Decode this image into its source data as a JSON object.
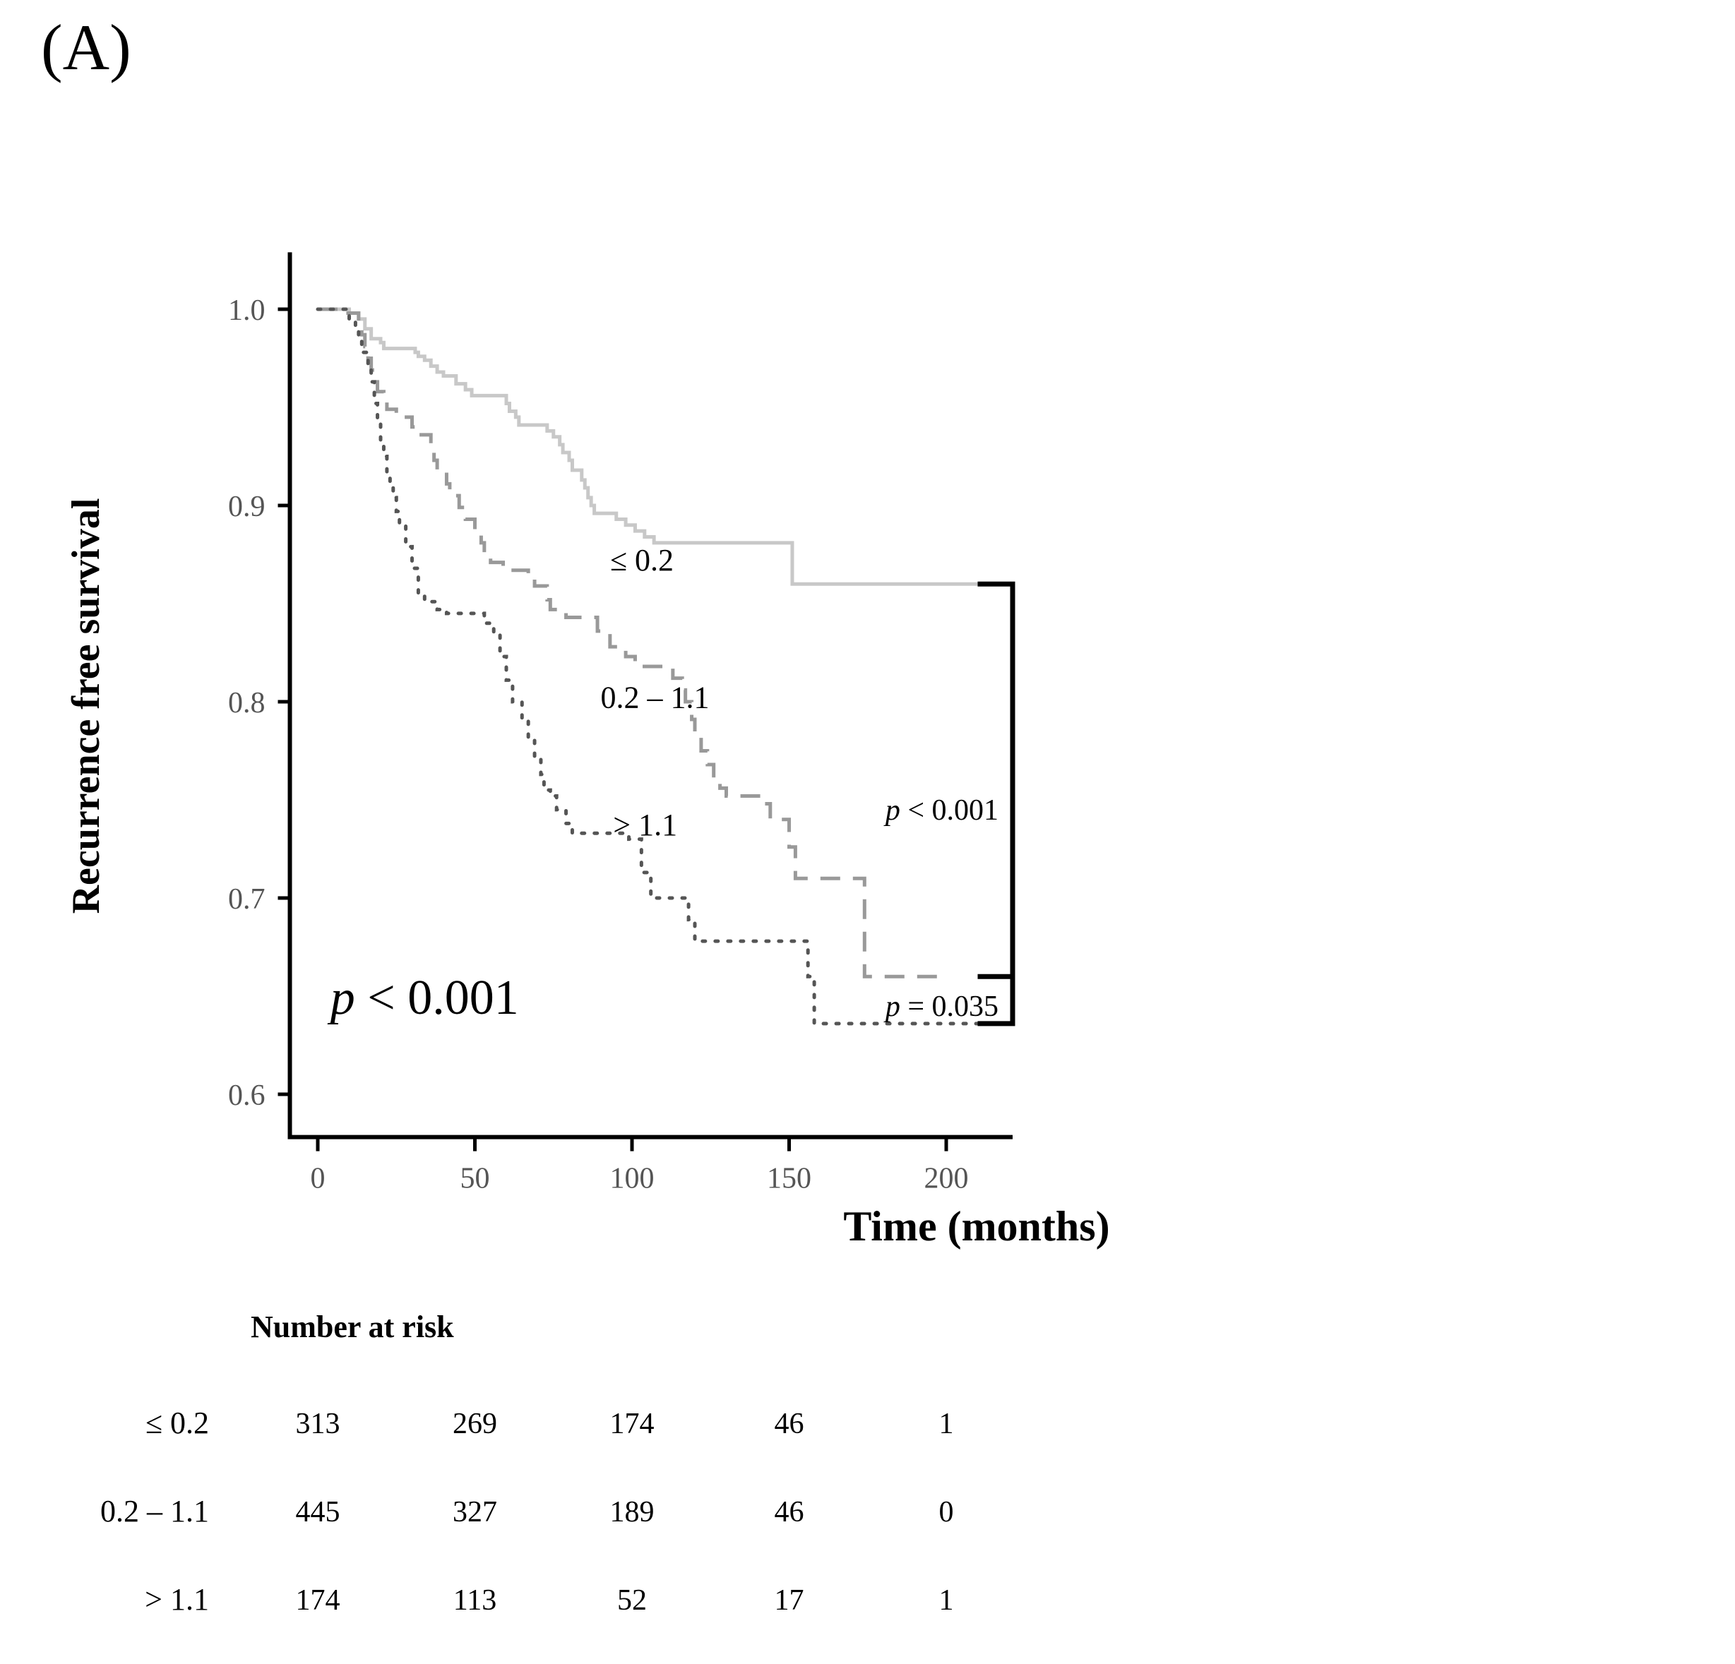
{
  "panel_label": "(A)",
  "chart_data": {
    "type": "line",
    "title": "",
    "xlabel": "Time (months)",
    "ylabel": "Recurrence free survival",
    "xlim": [
      -10,
      220
    ],
    "ylim": [
      0.58,
      1.02
    ],
    "x_ticks": [
      0,
      50,
      100,
      150,
      200
    ],
    "x_tick_labels": [
      "0",
      "50",
      "100",
      "150",
      "200"
    ],
    "y_ticks": [
      0.6,
      0.7,
      0.8,
      0.9,
      1.0
    ],
    "y_tick_labels": [
      "0.6",
      "0.7",
      "0.8",
      "0.9",
      "1.0"
    ],
    "grid": false,
    "series": [
      {
        "name": "≤ 0.2",
        "label": "≤ 0.2",
        "style": "solid",
        "color": "#c8c8c8",
        "label_at": [
          93,
          0.872
        ],
        "steps": [
          [
            0,
            1.0
          ],
          [
            10,
            0.998
          ],
          [
            13,
            0.995
          ],
          [
            15,
            0.99
          ],
          [
            17,
            0.985
          ],
          [
            20,
            0.983
          ],
          [
            21,
            0.98
          ],
          [
            31,
            0.978
          ],
          [
            32,
            0.976
          ],
          [
            34,
            0.974
          ],
          [
            36,
            0.971
          ],
          [
            38,
            0.968
          ],
          [
            40,
            0.966
          ],
          [
            44,
            0.962
          ],
          [
            47,
            0.959
          ],
          [
            49,
            0.956
          ],
          [
            60,
            0.952
          ],
          [
            61,
            0.948
          ],
          [
            63,
            0.945
          ],
          [
            64,
            0.941
          ],
          [
            73,
            0.938
          ],
          [
            75,
            0.935
          ],
          [
            77,
            0.931
          ],
          [
            78,
            0.927
          ],
          [
            80,
            0.923
          ],
          [
            81,
            0.918
          ],
          [
            84,
            0.913
          ],
          [
            85,
            0.909
          ],
          [
            86,
            0.904
          ],
          [
            87,
            0.9
          ],
          [
            88,
            0.896
          ],
          [
            95,
            0.893
          ],
          [
            98,
            0.89
          ],
          [
            101,
            0.887
          ],
          [
            104,
            0.884
          ],
          [
            107,
            0.881
          ],
          [
            151,
            0.86
          ],
          [
            210,
            0.86
          ]
        ]
      },
      {
        "name": "0.2 – 1.1",
        "label": "0.2 – 1.1",
        "style": "dashed",
        "color": "#999999",
        "label_at": [
          90,
          0.802
        ],
        "steps": [
          [
            0,
            1.0
          ],
          [
            8,
            0.998
          ],
          [
            13,
            0.993
          ],
          [
            14,
            0.987
          ],
          [
            15,
            0.981
          ],
          [
            16,
            0.975
          ],
          [
            17,
            0.969
          ],
          [
            18,
            0.963
          ],
          [
            19,
            0.958
          ],
          [
            21,
            0.953
          ],
          [
            22,
            0.949
          ],
          [
            25,
            0.945
          ],
          [
            30,
            0.94
          ],
          [
            32,
            0.936
          ],
          [
            36,
            0.93
          ],
          [
            37,
            0.923
          ],
          [
            38,
            0.917
          ],
          [
            41,
            0.911
          ],
          [
            42,
            0.905
          ],
          [
            45,
            0.899
          ],
          [
            47,
            0.893
          ],
          [
            50,
            0.887
          ],
          [
            52,
            0.881
          ],
          [
            53,
            0.876
          ],
          [
            55,
            0.871
          ],
          [
            59,
            0.867
          ],
          [
            67,
            0.863
          ],
          [
            69,
            0.859
          ],
          [
            73,
            0.852
          ],
          [
            74,
            0.847
          ],
          [
            79,
            0.843
          ],
          [
            89,
            0.836
          ],
          [
            93,
            0.828
          ],
          [
            98,
            0.823
          ],
          [
            101,
            0.818
          ],
          [
            113,
            0.812
          ],
          [
            116,
            0.806
          ],
          [
            117,
            0.8
          ],
          [
            119,
            0.791
          ],
          [
            120,
            0.783
          ],
          [
            122,
            0.775
          ],
          [
            124,
            0.768
          ],
          [
            126,
            0.76
          ],
          [
            128,
            0.756
          ],
          [
            130,
            0.752
          ],
          [
            141,
            0.748
          ],
          [
            144,
            0.74
          ],
          [
            150,
            0.726
          ],
          [
            152,
            0.71
          ],
          [
            174,
            0.66
          ],
          [
            198,
            0.66
          ]
        ]
      },
      {
        "name": "> 1.1",
        "label": "> 1.1",
        "style": "dotted",
        "color": "#555555",
        "label_at": [
          94,
          0.737
        ],
        "steps": [
          [
            0,
            1.0
          ],
          [
            10,
            0.995
          ],
          [
            12,
            0.99
          ],
          [
            13,
            0.984
          ],
          [
            14,
            0.978
          ],
          [
            16,
            0.972
          ],
          [
            17,
            0.963
          ],
          [
            18,
            0.952
          ],
          [
            19,
            0.942
          ],
          [
            20,
            0.933
          ],
          [
            21,
            0.925
          ],
          [
            22,
            0.917
          ],
          [
            23,
            0.91
          ],
          [
            24,
            0.904
          ],
          [
            25,
            0.897
          ],
          [
            26,
            0.89
          ],
          [
            28,
            0.879
          ],
          [
            30,
            0.868
          ],
          [
            32,
            0.855
          ],
          [
            34,
            0.851
          ],
          [
            38,
            0.847
          ],
          [
            41,
            0.845
          ],
          [
            53,
            0.84
          ],
          [
            56,
            0.834
          ],
          [
            58,
            0.823
          ],
          [
            60,
            0.811
          ],
          [
            62,
            0.8
          ],
          [
            65,
            0.79
          ],
          [
            67,
            0.781
          ],
          [
            69,
            0.771
          ],
          [
            71,
            0.763
          ],
          [
            72,
            0.755
          ],
          [
            74,
            0.752
          ],
          [
            76,
            0.745
          ],
          [
            79,
            0.738
          ],
          [
            81,
            0.733
          ],
          [
            99,
            0.73
          ],
          [
            103,
            0.713
          ],
          [
            106,
            0.7
          ],
          [
            118,
            0.689
          ],
          [
            120,
            0.678
          ],
          [
            156,
            0.66
          ],
          [
            158,
            0.636
          ],
          [
            210,
            0.636
          ]
        ]
      }
    ],
    "annotations": {
      "overall_p": "p < 0.001",
      "bracket_top_p": "p < 0.001",
      "bracket_bottom_p": "p = 0.035"
    },
    "risk_table": {
      "title": "Number at risk",
      "times": [
        0,
        50,
        100,
        150,
        200
      ],
      "rows": [
        {
          "group": "≤ 0.2",
          "counts": [
            "313",
            "269",
            "174",
            "46",
            "1"
          ]
        },
        {
          "group": "0.2 – 1.1",
          "counts": [
            "445",
            "327",
            "189",
            "46",
            "0"
          ]
        },
        {
          "group": "> 1.1",
          "counts": [
            "174",
            "113",
            "52",
            "17",
            "1"
          ]
        }
      ]
    }
  }
}
